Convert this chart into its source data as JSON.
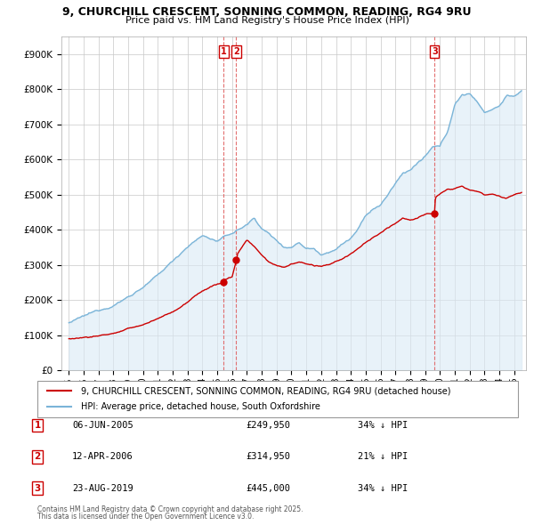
{
  "title": "9, CHURCHILL CRESCENT, SONNING COMMON, READING, RG4 9RU",
  "subtitle": "Price paid vs. HM Land Registry's House Price Index (HPI)",
  "legend_line1": "9, CHURCHILL CRESCENT, SONNING COMMON, READING, RG4 9RU (detached house)",
  "legend_line2": "HPI: Average price, detached house, South Oxfordshire",
  "transactions": [
    {
      "num": 1,
      "date": "06-JUN-2005",
      "price": 249950,
      "pct": "34%",
      "dir": "↓",
      "year": 2005.44
    },
    {
      "num": 2,
      "date": "12-APR-2006",
      "price": 314950,
      "pct": "21%",
      "dir": "↓",
      "year": 2006.28
    },
    {
      "num": 3,
      "date": "23-AUG-2019",
      "price": 445000,
      "pct": "34%",
      "dir": "↓",
      "year": 2019.64
    }
  ],
  "footnote1": "Contains HM Land Registry data © Crown copyright and database right 2025.",
  "footnote2": "This data is licensed under the Open Government Licence v3.0.",
  "hpi_color": "#7ab4d8",
  "hpi_fill": "#daeaf5",
  "price_color": "#cc0000",
  "vline_color": "#e06060",
  "background_color": "#ffffff",
  "grid_color": "#c8c8c8",
  "ylim": [
    0,
    950000
  ],
  "yticks": [
    0,
    100000,
    200000,
    300000,
    400000,
    500000,
    600000,
    700000,
    800000,
    900000
  ],
  "xlim_start": 1994.5,
  "xlim_end": 2025.8,
  "xticks": [
    1995,
    1996,
    1997,
    1998,
    1999,
    2000,
    2001,
    2002,
    2003,
    2004,
    2005,
    2006,
    2007,
    2008,
    2009,
    2010,
    2011,
    2012,
    2013,
    2014,
    2015,
    2016,
    2017,
    2018,
    2019,
    2020,
    2021,
    2022,
    2023,
    2024,
    2025
  ],
  "hpi_knots_x": [
    1995,
    1996,
    1997,
    1998,
    1999,
    2000,
    2001,
    2002,
    2003,
    2004,
    2005,
    2006,
    2007,
    2007.5,
    2008,
    2008.5,
    2009,
    2009.5,
    2010,
    2010.5,
    2011,
    2011.5,
    2012,
    2012.5,
    2013,
    2013.5,
    2014,
    2014.5,
    2015,
    2015.5,
    2016,
    2016.5,
    2017,
    2017.5,
    2018,
    2018.5,
    2019,
    2019.5,
    2020,
    2020.5,
    2021,
    2021.5,
    2022,
    2022.5,
    2023,
    2023.5,
    2024,
    2024.5,
    2025,
    2025.5
  ],
  "hpi_knots_y": [
    135000,
    150000,
    165000,
    185000,
    210000,
    240000,
    270000,
    310000,
    355000,
    385000,
    370000,
    390000,
    415000,
    435000,
    405000,
    390000,
    370000,
    355000,
    355000,
    370000,
    355000,
    355000,
    340000,
    350000,
    360000,
    375000,
    390000,
    415000,
    450000,
    470000,
    480000,
    510000,
    540000,
    570000,
    580000,
    600000,
    615000,
    640000,
    640000,
    680000,
    760000,
    790000,
    790000,
    770000,
    740000,
    750000,
    760000,
    790000,
    790000,
    800000
  ],
  "price_knots_x": [
    1995,
    1996,
    1997,
    1998,
    1999,
    2000,
    2001,
    2002,
    2003,
    2004,
    2005.0,
    2005.44,
    2005.5,
    2006.0,
    2006.28,
    2006.3,
    2007,
    2007.5,
    2008,
    2008.5,
    2009,
    2009.5,
    2010,
    2010.5,
    2011,
    2011.5,
    2012,
    2012.5,
    2013,
    2013.5,
    2014,
    2014.5,
    2015,
    2015.5,
    2016,
    2016.5,
    2017,
    2017.5,
    2018,
    2018.5,
    2019.0,
    2019.64,
    2019.7,
    2020,
    2020.5,
    2021,
    2021.5,
    2022,
    2022.5,
    2023,
    2023.5,
    2024,
    2024.5,
    2025,
    2025.5
  ],
  "price_knots_y": [
    90000,
    95000,
    100000,
    108000,
    118000,
    130000,
    148000,
    168000,
    195000,
    228000,
    248000,
    249950,
    260000,
    268000,
    314950,
    330000,
    375000,
    355000,
    330000,
    310000,
    300000,
    295000,
    305000,
    310000,
    305000,
    300000,
    295000,
    298000,
    308000,
    318000,
    330000,
    345000,
    360000,
    375000,
    385000,
    400000,
    415000,
    430000,
    425000,
    432000,
    440000,
    445000,
    490000,
    500000,
    510000,
    510000,
    520000,
    510000,
    505000,
    495000,
    500000,
    495000,
    490000,
    500000,
    505000
  ]
}
